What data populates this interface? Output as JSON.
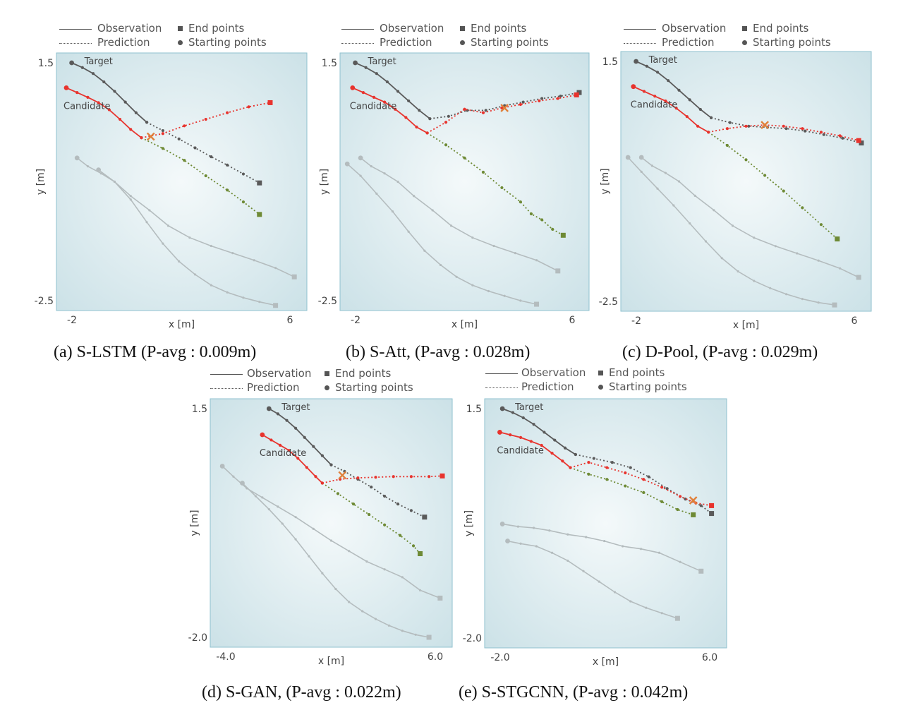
{
  "legend": {
    "observation": "Observation",
    "prediction": "Prediction",
    "end_points": "End points",
    "starting_points": "Starting points"
  },
  "colors": {
    "target": "#5a5a5a",
    "candidate": "#e8332d",
    "ground_truth_candidate": "#6e8a35",
    "other": "#b4bcbe",
    "collision_marker": "#e0803a",
    "background_center": "#f4f9fa",
    "background_edge": "#c9e0e6",
    "frame": "#8fc1cf"
  },
  "chart_data": [
    {
      "type": "line",
      "caption": "(a)  S-LSTM (P-avg : 0.009m)",
      "xlabel": "x [m]",
      "ylabel": "y [m]",
      "xticks": [
        "-2",
        "6"
      ],
      "yticks": [
        "1.5",
        "-2.5"
      ],
      "annotations": [
        "Target",
        "Candidate"
      ],
      "xlim": [
        -2.2,
        6.4
      ],
      "ylim": [
        -2.5,
        1.5
      ],
      "series": [
        {
          "role": "target-obs",
          "x": [
            -2.0,
            -1.6,
            -1.2,
            -0.8,
            -0.4,
            0.0,
            0.4,
            0.8
          ],
          "y": [
            1.5,
            1.42,
            1.32,
            1.18,
            1.02,
            0.84,
            0.66,
            0.5
          ]
        },
        {
          "role": "target-pred",
          "x": [
            0.8,
            1.4,
            2.0,
            2.6,
            3.2,
            3.8,
            4.4,
            5.0
          ],
          "y": [
            0.5,
            0.36,
            0.22,
            0.07,
            -0.08,
            -0.22,
            -0.37,
            -0.52
          ]
        },
        {
          "role": "candidate-obs",
          "x": [
            -2.2,
            -1.8,
            -1.4,
            -1.0,
            -0.6,
            -0.2,
            0.2,
            0.6
          ],
          "y": [
            1.08,
            1.0,
            0.92,
            0.83,
            0.71,
            0.55,
            0.38,
            0.24
          ]
        },
        {
          "role": "candidate-pred",
          "x": [
            0.6,
            1.4,
            2.2,
            3.0,
            3.8,
            4.6,
            5.4
          ],
          "y": [
            0.24,
            0.31,
            0.44,
            0.55,
            0.66,
            0.76,
            0.83
          ]
        },
        {
          "role": "candidate-gt",
          "x": [
            0.6,
            1.4,
            2.2,
            3.0,
            3.8,
            4.4,
            5.0
          ],
          "y": [
            0.24,
            0.06,
            -0.14,
            -0.4,
            -0.64,
            -0.84,
            -1.05
          ]
        },
        {
          "role": "other",
          "x": [
            -1.8,
            -1.4,
            -0.9,
            -0.4,
            0.2,
            0.9,
            1.6,
            2.4,
            3.2,
            4.0,
            4.8,
            5.6,
            6.3
          ],
          "y": [
            -0.1,
            -0.24,
            -0.36,
            -0.5,
            -0.74,
            -0.98,
            -1.24,
            -1.44,
            -1.58,
            -1.7,
            -1.82,
            -1.95,
            -2.1
          ]
        },
        {
          "role": "other",
          "x": [
            -1.0,
            -0.4,
            0.2,
            0.8,
            1.4,
            2.0,
            2.6,
            3.2,
            3.8,
            4.4,
            5.0,
            5.6
          ],
          "y": [
            -0.3,
            -0.5,
            -0.8,
            -1.18,
            -1.54,
            -1.84,
            -2.06,
            -2.24,
            -2.36,
            -2.45,
            -2.52,
            -2.58
          ]
        }
      ],
      "collision": {
        "x": 0.95,
        "y": 0.26
      }
    },
    {
      "type": "line",
      "caption": "(b)  S-Att, (P-avg : 0.028m)",
      "xlabel": "x [m]",
      "ylabel": "y [m]",
      "xticks": [
        "-2",
        "6"
      ],
      "yticks": [
        "1.5",
        "-2.5"
      ],
      "annotations": [
        "Target",
        "Candidate"
      ],
      "xlim": [
        -2.2,
        6.4
      ],
      "ylim": [
        -2.5,
        1.5
      ],
      "series": [
        {
          "role": "target-obs",
          "x": [
            -2.0,
            -1.6,
            -1.2,
            -0.8,
            -0.4,
            0.0,
            0.4,
            0.8
          ],
          "y": [
            1.5,
            1.42,
            1.32,
            1.18,
            1.02,
            0.86,
            0.7,
            0.56
          ]
        },
        {
          "role": "target-pred",
          "x": [
            0.8,
            1.5,
            2.2,
            2.9,
            3.6,
            4.3,
            5.0,
            5.7,
            6.4
          ],
          "y": [
            0.56,
            0.6,
            0.7,
            0.7,
            0.78,
            0.84,
            0.9,
            0.94,
            1.0
          ]
        },
        {
          "role": "candidate-obs",
          "x": [
            -2.1,
            -1.7,
            -1.3,
            -0.9,
            -0.5,
            -0.1,
            0.3,
            0.7
          ],
          "y": [
            1.08,
            1.0,
            0.92,
            0.84,
            0.72,
            0.58,
            0.42,
            0.32
          ]
        },
        {
          "role": "candidate-pred",
          "x": [
            0.7,
            1.4,
            2.1,
            2.8,
            3.5,
            4.2,
            4.9,
            5.6,
            6.3
          ],
          "y": [
            0.32,
            0.5,
            0.72,
            0.66,
            0.74,
            0.8,
            0.86,
            0.9,
            0.96
          ]
        },
        {
          "role": "candidate-gt",
          "x": [
            0.7,
            1.4,
            2.1,
            2.8,
            3.5,
            4.2,
            4.6,
            5.0,
            5.4,
            5.8
          ],
          "y": [
            0.32,
            0.12,
            -0.1,
            -0.34,
            -0.6,
            -0.84,
            -1.04,
            -1.14,
            -1.3,
            -1.4
          ]
        },
        {
          "role": "other",
          "x": [
            -1.8,
            -1.4,
            -0.9,
            -0.4,
            0.2,
            0.9,
            1.6,
            2.4,
            3.2,
            4.0,
            4.8,
            5.6
          ],
          "y": [
            -0.1,
            -0.24,
            -0.36,
            -0.5,
            -0.74,
            -0.98,
            -1.24,
            -1.44,
            -1.58,
            -1.7,
            -1.82,
            -2.0
          ]
        },
        {
          "role": "other",
          "x": [
            -2.3,
            -1.8,
            -1.2,
            -0.6,
            0.0,
            0.6,
            1.2,
            1.8,
            2.4,
            3.0,
            3.6,
            4.2,
            4.8
          ],
          "y": [
            -0.2,
            -0.4,
            -0.7,
            -1.0,
            -1.34,
            -1.66,
            -1.9,
            -2.1,
            -2.24,
            -2.34,
            -2.42,
            -2.5,
            -2.56
          ]
        }
      ],
      "collision": {
        "x": 3.6,
        "y": 0.74
      }
    },
    {
      "type": "line",
      "caption": "(c)  D-Pool, (P-avg : 0.029m)",
      "xlabel": "x [m]",
      "ylabel": "y [m]",
      "xticks": [
        "-2",
        "6"
      ],
      "yticks": [
        "1.5",
        "-2.5"
      ],
      "annotations": [
        "Target",
        "Candidate"
      ],
      "xlim": [
        -2.2,
        6.4
      ],
      "ylim": [
        -2.5,
        1.5
      ],
      "series": [
        {
          "role": "target-obs",
          "x": [
            -2.0,
            -1.6,
            -1.2,
            -0.8,
            -0.4,
            0.0,
            0.4,
            0.8
          ],
          "y": [
            1.5,
            1.42,
            1.32,
            1.18,
            1.02,
            0.86,
            0.7,
            0.56
          ]
        },
        {
          "role": "target-pred",
          "x": [
            0.8,
            1.5,
            2.2,
            2.9,
            3.6,
            4.3,
            5.0,
            5.7,
            6.4
          ],
          "y": [
            0.56,
            0.48,
            0.42,
            0.4,
            0.38,
            0.34,
            0.28,
            0.22,
            0.14
          ]
        },
        {
          "role": "candidate-obs",
          "x": [
            -2.1,
            -1.7,
            -1.3,
            -0.9,
            -0.5,
            -0.1,
            0.3,
            0.7
          ],
          "y": [
            1.08,
            1.0,
            0.92,
            0.84,
            0.72,
            0.58,
            0.42,
            0.32
          ]
        },
        {
          "role": "candidate-pred",
          "x": [
            0.7,
            1.4,
            2.1,
            2.8,
            3.5,
            4.2,
            4.9,
            5.6,
            6.3
          ],
          "y": [
            0.32,
            0.38,
            0.42,
            0.44,
            0.42,
            0.38,
            0.32,
            0.26,
            0.18
          ]
        },
        {
          "role": "candidate-gt",
          "x": [
            0.7,
            1.4,
            2.1,
            2.8,
            3.5,
            4.2,
            4.9,
            5.5
          ],
          "y": [
            0.32,
            0.1,
            -0.14,
            -0.4,
            -0.66,
            -0.94,
            -1.22,
            -1.46
          ]
        },
        {
          "role": "other",
          "x": [
            -1.8,
            -1.4,
            -0.9,
            -0.4,
            0.2,
            0.9,
            1.6,
            2.4,
            3.2,
            4.0,
            4.8,
            5.6,
            6.3
          ],
          "y": [
            -0.1,
            -0.24,
            -0.36,
            -0.5,
            -0.74,
            -0.98,
            -1.24,
            -1.44,
            -1.58,
            -1.7,
            -1.82,
            -1.95,
            -2.1
          ]
        },
        {
          "role": "other",
          "x": [
            -2.3,
            -1.8,
            -1.2,
            -0.6,
            0.0,
            0.6,
            1.2,
            1.8,
            2.4,
            3.0,
            3.6,
            4.2,
            4.8,
            5.4
          ],
          "y": [
            -0.1,
            -0.34,
            -0.62,
            -0.9,
            -1.2,
            -1.5,
            -1.78,
            -2.0,
            -2.16,
            -2.28,
            -2.38,
            -2.46,
            -2.52,
            -2.56
          ]
        }
      ],
      "collision": {
        "x": 2.8,
        "y": 0.44
      }
    },
    {
      "type": "line",
      "caption": "(d)  S-GAN, (P-avg : 0.022m)",
      "xlabel": "x [m]",
      "ylabel": "y [m]",
      "xticks": [
        "-4.0",
        "6.0"
      ],
      "yticks": [
        "1.5",
        "-2.0"
      ],
      "annotations": [
        "Target",
        "Candidate"
      ],
      "xlim": [
        -4.0,
        6.0
      ],
      "ylim": [
        -2.0,
        1.5
      ],
      "series": [
        {
          "role": "target-obs",
          "x": [
            -1.8,
            -1.4,
            -1.0,
            -0.6,
            -0.2,
            0.2,
            0.6,
            1.0
          ],
          "y": [
            1.5,
            1.42,
            1.32,
            1.2,
            1.06,
            0.92,
            0.78,
            0.64
          ]
        },
        {
          "role": "target-pred",
          "x": [
            1.0,
            1.6,
            2.2,
            2.8,
            3.4,
            4.0,
            4.6,
            5.2
          ],
          "y": [
            0.64,
            0.54,
            0.42,
            0.3,
            0.16,
            0.04,
            -0.06,
            -0.16
          ]
        },
        {
          "role": "candidate-obs",
          "x": [
            -2.1,
            -1.7,
            -1.3,
            -0.9,
            -0.5,
            -0.1,
            0.3,
            0.6
          ],
          "y": [
            1.1,
            1.02,
            0.94,
            0.86,
            0.74,
            0.6,
            0.46,
            0.36
          ]
        },
        {
          "role": "candidate-pred",
          "x": [
            0.6,
            1.4,
            2.2,
            3.0,
            3.8,
            4.6,
            5.4,
            6.0
          ],
          "y": [
            0.36,
            0.42,
            0.44,
            0.45,
            0.46,
            0.46,
            0.46,
            0.47
          ]
        },
        {
          "role": "candidate-gt",
          "x": [
            0.6,
            1.3,
            2.0,
            2.7,
            3.4,
            4.1,
            4.7,
            5.0
          ],
          "y": [
            0.36,
            0.2,
            0.04,
            -0.12,
            -0.28,
            -0.44,
            -0.6,
            -0.72
          ]
        },
        {
          "role": "other",
          "x": [
            -3.9,
            -3.4,
            -2.8,
            -2.1,
            -1.4,
            -0.6,
            0.2,
            1.0,
            1.8,
            2.6,
            3.4,
            4.2,
            5.0,
            5.9
          ],
          "y": [
            0.62,
            0.46,
            0.28,
            0.14,
            0.0,
            -0.16,
            -0.34,
            -0.52,
            -0.68,
            -0.84,
            -0.96,
            -1.08,
            -1.28,
            -1.4
          ]
        },
        {
          "role": "other",
          "x": [
            -3.0,
            -2.4,
            -1.8,
            -1.2,
            -0.6,
            0.0,
            0.6,
            1.2,
            1.8,
            2.4,
            3.0,
            3.6,
            4.2,
            4.8,
            5.4
          ],
          "y": [
            0.36,
            0.16,
            -0.04,
            -0.26,
            -0.5,
            -0.76,
            -1.02,
            -1.26,
            -1.46,
            -1.6,
            -1.72,
            -1.82,
            -1.9,
            -1.96,
            -2.0
          ]
        }
      ],
      "collision": {
        "x": 1.5,
        "y": 0.48
      }
    },
    {
      "type": "line",
      "caption": "(e)  S-STGCNN, (P-avg : 0.042m)",
      "xlabel": "x [m]",
      "ylabel": "y [m]",
      "xticks": [
        "-2.0",
        "6.0"
      ],
      "yticks": [
        "1.5",
        "-2.0"
      ],
      "annotations": [
        "Target",
        "Candidate"
      ],
      "xlim": [
        -2.3,
        6.2
      ],
      "ylim": [
        -2.0,
        1.5
      ],
      "series": [
        {
          "role": "target-obs",
          "x": [
            -2.0,
            -1.6,
            -1.2,
            -0.8,
            -0.4,
            0.0,
            0.4,
            0.8
          ],
          "y": [
            1.5,
            1.44,
            1.36,
            1.26,
            1.14,
            1.02,
            0.9,
            0.8
          ]
        },
        {
          "role": "target-pred",
          "x": [
            0.8,
            1.5,
            2.2,
            2.9,
            3.6,
            4.3,
            5.0,
            5.6,
            6.0
          ],
          "y": [
            0.8,
            0.74,
            0.68,
            0.6,
            0.46,
            0.28,
            0.12,
            0.02,
            -0.1
          ]
        },
        {
          "role": "candidate-obs",
          "x": [
            -2.1,
            -1.7,
            -1.3,
            -0.9,
            -0.5,
            -0.1,
            0.3,
            0.6
          ],
          "y": [
            1.14,
            1.1,
            1.06,
            1.0,
            0.94,
            0.82,
            0.7,
            0.6
          ]
        },
        {
          "role": "candidate-pred",
          "x": [
            0.6,
            1.3,
            2.0,
            2.7,
            3.4,
            4.1,
            4.8,
            5.4,
            6.0
          ],
          "y": [
            0.6,
            0.68,
            0.6,
            0.52,
            0.42,
            0.3,
            0.16,
            0.06,
            0.02
          ]
        },
        {
          "role": "candidate-gt",
          "x": [
            0.6,
            1.3,
            2.0,
            2.7,
            3.4,
            4.1,
            4.7,
            5.3
          ],
          "y": [
            0.6,
            0.5,
            0.42,
            0.32,
            0.22,
            0.08,
            -0.04,
            -0.12
          ]
        },
        {
          "role": "other",
          "x": [
            -2.0,
            -1.4,
            -0.8,
            -0.2,
            0.5,
            1.2,
            1.9,
            2.6,
            3.3,
            4.0,
            4.8,
            5.6
          ],
          "y": [
            -0.26,
            -0.3,
            -0.32,
            -0.36,
            -0.42,
            -0.46,
            -0.52,
            -0.6,
            -0.64,
            -0.7,
            -0.84,
            -0.98
          ]
        },
        {
          "role": "other",
          "x": [
            -1.8,
            -1.3,
            -0.7,
            -0.1,
            0.5,
            1.1,
            1.7,
            2.3,
            2.9,
            3.5,
            4.1,
            4.7
          ],
          "y": [
            -0.52,
            -0.56,
            -0.6,
            -0.7,
            -0.82,
            -0.98,
            -1.14,
            -1.3,
            -1.44,
            -1.54,
            -1.62,
            -1.7
          ]
        }
      ],
      "collision": {
        "x": 5.3,
        "y": 0.1
      }
    }
  ]
}
